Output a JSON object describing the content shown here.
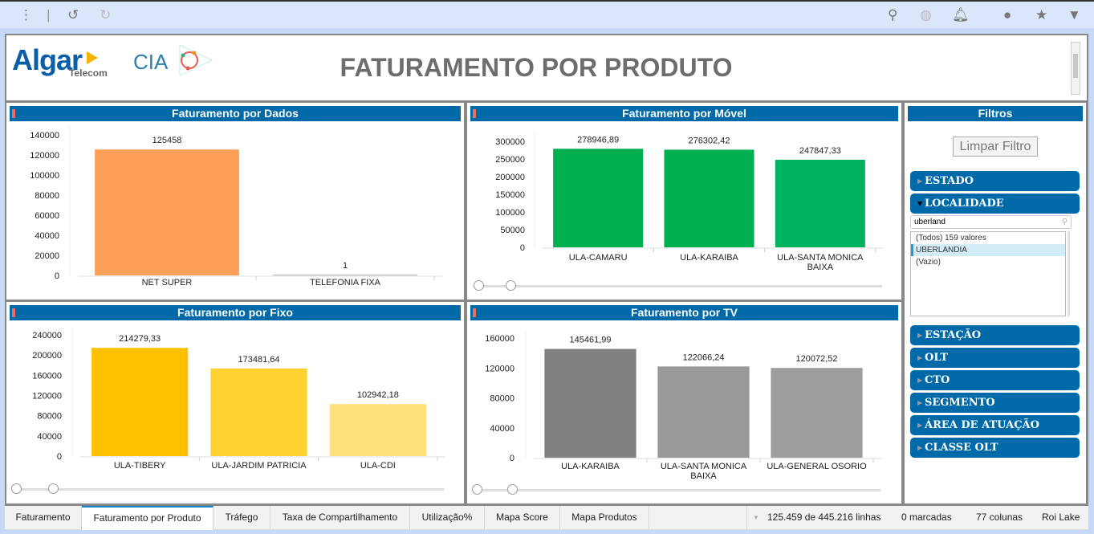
{
  "toolbar": {
    "icons": [
      "more-vertical-icon",
      "undo-icon",
      "redo-icon",
      "search-icon",
      "globe-icon",
      "bell-icon",
      "comment-icon",
      "bookmark-icon",
      "filter-icon"
    ]
  },
  "header": {
    "logo_algar": "Algar",
    "logo_telecom": "Telecom",
    "logo_cia": "CIA",
    "title": "FATURAMENTO POR PRODUTO"
  },
  "chart_data": [
    {
      "type": "bar",
      "title": "Faturamento por Dados",
      "categories": [
        "NET SUPER",
        "TELEFONIA FIXA"
      ],
      "values": [
        125458,
        1
      ],
      "value_labels": [
        "125458",
        "1"
      ],
      "yticks": [
        "0",
        "20000",
        "40000",
        "60000",
        "80000",
        "100000",
        "120000",
        "140000"
      ],
      "ylim": [
        0,
        140000
      ],
      "colors": [
        "#ffa05a",
        "#b0b0b0"
      ]
    },
    {
      "type": "bar",
      "title": "Faturamento por Móvel",
      "categories": [
        "ULA-CAMARU",
        "ULA-KARAIBA",
        "ULA-SANTA MONICA BAIXA"
      ],
      "values": [
        278946.89,
        276302.42,
        247847.33
      ],
      "value_labels": [
        "278946,89",
        "276302,42",
        "247847,33"
      ],
      "yticks": [
        "0",
        "50000",
        "100000",
        "150000",
        "200000",
        "250000",
        "300000"
      ],
      "ylim": [
        0,
        300000
      ],
      "colors": [
        "#00b050",
        "#00b050",
        "#00b35f"
      ]
    },
    {
      "type": "bar",
      "title": "Faturamento por Fixo",
      "categories": [
        "ULA-TIBERY",
        "ULA-JARDIM PATRICIA",
        "ULA-CDI"
      ],
      "values": [
        214279.33,
        173481.64,
        102942.18
      ],
      "value_labels": [
        "214279,33",
        "173481,64",
        "102942,18"
      ],
      "yticks": [
        "0",
        "40000",
        "80000",
        "120000",
        "160000",
        "200000",
        "240000"
      ],
      "ylim": [
        0,
        240000
      ],
      "colors": [
        "#ffc000",
        "#ffd232",
        "#ffe07a"
      ]
    },
    {
      "type": "bar",
      "title": "Faturamento por TV",
      "categories": [
        "ULA-KARAIBA",
        "ULA-SANTA MONICA BAIXA",
        "ULA-GENERAL OSORIO"
      ],
      "values": [
        145461.99,
        122066.24,
        120072.52
      ],
      "value_labels": [
        "145461,99",
        "122066,24",
        "120072,52"
      ],
      "yticks": [
        "0",
        "40000",
        "80000",
        "120000",
        "160000"
      ],
      "ylim": [
        0,
        160000
      ],
      "colors": [
        "#808080",
        "#999999",
        "#9e9e9e"
      ]
    }
  ],
  "filters": {
    "title": "Filtros",
    "clear": "Limpar Filtro",
    "estado": "ESTADO",
    "localidade": "LOCALIDADE",
    "search_value": "uberland",
    "list": [
      "(Todos) 159 valores",
      "UBERLANDIA",
      "(Vazio)"
    ],
    "rest": [
      "ESTAÇÃO",
      "OLT",
      "CTO",
      "SEGMENTO",
      "ÁREA DE ATUAÇÃO",
      "CLASSE OLT"
    ]
  },
  "tabs": [
    "Faturamento",
    "Faturamento por Produto",
    "Tráfego",
    "Taxa de Compartilhamento",
    "Utilização%",
    "Mapa Score",
    "Mapa Produtos"
  ],
  "status": {
    "rows": "125.459 de 445.216 linhas",
    "marked": "0 marcadas",
    "columns": "77 colunas",
    "user": "Roi Lake"
  }
}
